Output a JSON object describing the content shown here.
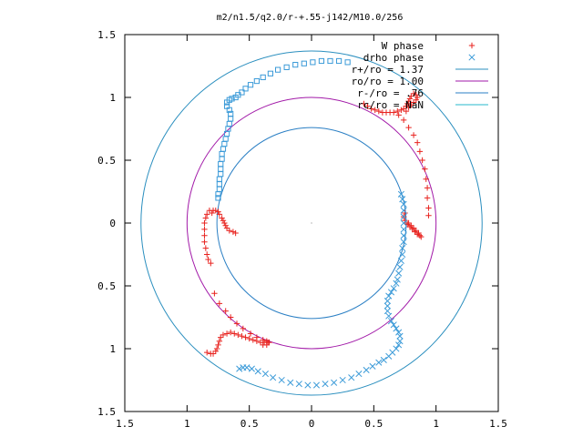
{
  "chart_data": {
    "type": "scatter",
    "title": "m2/n1.5/q2.0/r-+.55-j142/M10.0/256",
    "xlabel": "",
    "ylabel": "",
    "xlim": [
      -1.5,
      1.5
    ],
    "ylim": [
      -1.5,
      1.5
    ],
    "x_ticks": [
      -1.5,
      -1,
      -0.5,
      0,
      0.5,
      1,
      1.5
    ],
    "x_tick_labels": [
      "1.5",
      "1",
      "0.5",
      "0",
      "0.5",
      "1",
      "1.5"
    ],
    "y_ticks": [
      1.5,
      1,
      0.5,
      0,
      -0.5,
      -1,
      -1.5
    ],
    "y_tick_labels": [
      "1.5",
      "1",
      "0.5",
      "0",
      "0.5",
      "1",
      "1.5"
    ],
    "grid": false,
    "legend_position": "top-right",
    "legend": [
      {
        "label": "W phase",
        "marker": "plus",
        "color": "#e8221e"
      },
      {
        "label": "drho phase",
        "marker": "cross",
        "color": "#3a9ad8"
      },
      {
        "label": "r+/ro = 1.37",
        "marker": "line",
        "color": "#2b8fbf"
      },
      {
        "label": "ro/ro = 1.00",
        "marker": "line",
        "color": "#a21aa8"
      },
      {
        "label": "r-/ro = .76",
        "marker": "line",
        "color": "#2a7fc4"
      },
      {
        "label": "rc/ro = NaN",
        "marker": "line",
        "color": "#27b8cc"
      }
    ],
    "circles": [
      {
        "name": "r+/ro = 1.37",
        "r": 1.37,
        "color": "#2b8fbf"
      },
      {
        "name": "ro/ro = 1.00",
        "r": 1.0,
        "color": "#a21aa8"
      },
      {
        "name": "r-/ro = .76",
        "r": 0.76,
        "color": "#2a7fc4"
      }
    ],
    "series": [
      {
        "name": "W phase",
        "color": "#e8221e",
        "marker": "plus",
        "points": [
          [
            0.42,
            0.95
          ],
          [
            0.45,
            0.93
          ],
          [
            0.48,
            0.91
          ],
          [
            0.51,
            0.9
          ],
          [
            0.54,
            0.89
          ],
          [
            0.57,
            0.88
          ],
          [
            0.6,
            0.88
          ],
          [
            0.63,
            0.88
          ],
          [
            0.66,
            0.88
          ],
          [
            0.69,
            0.89
          ],
          [
            0.72,
            0.9
          ],
          [
            0.74,
            0.91
          ],
          [
            0.76,
            0.93
          ],
          [
            0.77,
            0.95
          ],
          [
            0.78,
            0.97
          ],
          [
            0.79,
            0.99
          ],
          [
            0.8,
            1.01
          ],
          [
            0.82,
            1.03
          ],
          [
            0.84,
            1.02
          ],
          [
            0.85,
            1.0
          ],
          [
            0.84,
            0.98
          ],
          [
            0.82,
            0.96
          ],
          [
            0.8,
            0.94
          ],
          [
            0.78,
            0.92
          ],
          [
            0.76,
            0.89
          ],
          [
            0.7,
            0.86
          ],
          [
            0.74,
            0.82
          ],
          [
            0.78,
            0.76
          ],
          [
            0.82,
            0.7
          ],
          [
            0.85,
            0.64
          ],
          [
            0.87,
            0.57
          ],
          [
            0.89,
            0.5
          ],
          [
            0.91,
            0.43
          ],
          [
            0.92,
            0.35
          ],
          [
            0.93,
            0.28
          ],
          [
            0.93,
            0.2
          ],
          [
            0.94,
            0.12
          ],
          [
            0.94,
            0.06
          ],
          [
            0.88,
            -0.11
          ],
          [
            0.85,
            -0.09
          ],
          [
            0.83,
            -0.07
          ],
          [
            0.81,
            -0.05
          ],
          [
            0.79,
            -0.03
          ],
          [
            0.77,
            -0.01
          ],
          [
            0.75,
            0.02
          ],
          [
            0.74,
            0.05
          ],
          [
            0.75,
            0.08
          ],
          [
            0.78,
            0.0
          ],
          [
            0.8,
            -0.02
          ],
          [
            0.82,
            -0.04
          ],
          [
            0.84,
            -0.06
          ],
          [
            0.86,
            -0.08
          ],
          [
            0.87,
            -0.1
          ],
          [
            -0.82,
            0.1
          ],
          [
            -0.84,
            0.07
          ],
          [
            -0.85,
            0.04
          ],
          [
            -0.86,
            0.0
          ],
          [
            -0.86,
            -0.05
          ],
          [
            -0.86,
            -0.1
          ],
          [
            -0.86,
            -0.15
          ],
          [
            -0.85,
            -0.2
          ],
          [
            -0.84,
            -0.25
          ],
          [
            -0.83,
            -0.29
          ],
          [
            -0.81,
            -0.32
          ],
          [
            -0.8,
            0.08
          ],
          [
            -0.79,
            0.1
          ],
          [
            -0.77,
            0.1
          ],
          [
            -0.75,
            0.09
          ],
          [
            -0.74,
            0.07
          ],
          [
            -0.72,
            0.04
          ],
          [
            -0.71,
            0.02
          ],
          [
            -0.7,
            0.0
          ],
          [
            -0.69,
            -0.02
          ],
          [
            -0.68,
            -0.04
          ],
          [
            -0.66,
            -0.06
          ],
          [
            -0.63,
            -0.07
          ],
          [
            -0.61,
            -0.08
          ],
          [
            -0.78,
            -0.56
          ],
          [
            -0.74,
            -0.64
          ],
          [
            -0.69,
            -0.7
          ],
          [
            -0.65,
            -0.75
          ],
          [
            -0.6,
            -0.8
          ],
          [
            -0.55,
            -0.84
          ],
          [
            -0.49,
            -0.88
          ],
          [
            -0.44,
            -0.91
          ],
          [
            -0.39,
            -0.93
          ],
          [
            -0.35,
            -0.95
          ],
          [
            -0.84,
            -1.03
          ],
          [
            -0.81,
            -1.04
          ],
          [
            -0.79,
            -1.04
          ],
          [
            -0.77,
            -1.02
          ],
          [
            -0.76,
            -1.0
          ],
          [
            -0.75,
            -0.97
          ],
          [
            -0.74,
            -0.94
          ],
          [
            -0.73,
            -0.91
          ],
          [
            -0.71,
            -0.89
          ],
          [
            -0.68,
            -0.88
          ],
          [
            -0.65,
            -0.87
          ],
          [
            -0.62,
            -0.88
          ],
          [
            -0.59,
            -0.89
          ],
          [
            -0.56,
            -0.9
          ],
          [
            -0.53,
            -0.91
          ],
          [
            -0.5,
            -0.92
          ],
          [
            -0.47,
            -0.93
          ],
          [
            -0.44,
            -0.94
          ],
          [
            -0.41,
            -0.95
          ],
          [
            -0.38,
            -0.95
          ],
          [
            -0.36,
            -0.94
          ],
          [
            -0.34,
            -0.95
          ],
          [
            -0.36,
            -0.97
          ],
          [
            -0.39,
            -0.97
          ]
        ]
      },
      {
        "name": "drho phase",
        "color": "#3a9ad8",
        "marker": "cross",
        "points": [
          [
            0.72,
            0.23
          ],
          [
            0.73,
            0.19
          ],
          [
            0.74,
            0.15
          ],
          [
            0.74,
            0.1
          ],
          [
            0.74,
            0.05
          ],
          [
            0.74,
            0.0
          ],
          [
            0.74,
            -0.05
          ],
          [
            0.74,
            -0.1
          ],
          [
            0.74,
            -0.15
          ],
          [
            0.73,
            -0.2
          ],
          [
            0.73,
            -0.25
          ],
          [
            0.72,
            -0.3
          ],
          [
            0.71,
            -0.35
          ],
          [
            0.7,
            -0.4
          ],
          [
            0.69,
            -0.45
          ],
          [
            0.68,
            -0.48
          ],
          [
            0.66,
            -0.52
          ],
          [
            0.64,
            -0.55
          ],
          [
            0.62,
            -0.58
          ],
          [
            0.61,
            -0.62
          ],
          [
            0.61,
            -0.66
          ],
          [
            0.61,
            -0.7
          ],
          [
            0.62,
            -0.74
          ],
          [
            0.64,
            -0.78
          ],
          [
            0.66,
            -0.81
          ],
          [
            0.68,
            -0.84
          ],
          [
            0.7,
            -0.87
          ],
          [
            0.71,
            -0.9
          ],
          [
            0.71,
            -0.94
          ],
          [
            0.7,
            -0.97
          ],
          [
            0.68,
            -1.0
          ],
          [
            0.65,
            -1.03
          ],
          [
            0.62,
            -1.06
          ],
          [
            0.58,
            -1.09
          ],
          [
            0.54,
            -1.11
          ],
          [
            0.49,
            -1.14
          ],
          [
            0.44,
            -1.17
          ],
          [
            0.38,
            -1.2
          ],
          [
            0.32,
            -1.23
          ],
          [
            0.25,
            -1.25
          ],
          [
            0.18,
            -1.27
          ],
          [
            0.11,
            -1.28
          ],
          [
            0.04,
            -1.29
          ],
          [
            -0.03,
            -1.29
          ],
          [
            -0.1,
            -1.28
          ],
          [
            -0.17,
            -1.27
          ],
          [
            -0.24,
            -1.25
          ],
          [
            -0.31,
            -1.23
          ],
          [
            -0.37,
            -1.2
          ],
          [
            -0.43,
            -1.18
          ],
          [
            -0.48,
            -1.16
          ],
          [
            -0.52,
            -1.15
          ],
          [
            -0.55,
            -1.15
          ],
          [
            -0.58,
            -1.16
          ]
        ]
      },
      {
        "name": "",
        "color": "#3a9ad8",
        "marker": "square",
        "points": [
          [
            0.29,
            1.28
          ],
          [
            0.22,
            1.29
          ],
          [
            0.15,
            1.29
          ],
          [
            0.08,
            1.29
          ],
          [
            0.01,
            1.28
          ],
          [
            -0.06,
            1.27
          ],
          [
            -0.13,
            1.26
          ],
          [
            -0.2,
            1.24
          ],
          [
            -0.27,
            1.22
          ],
          [
            -0.33,
            1.19
          ],
          [
            -0.39,
            1.16
          ],
          [
            -0.44,
            1.13
          ],
          [
            -0.49,
            1.1
          ],
          [
            -0.53,
            1.07
          ],
          [
            -0.56,
            1.04
          ],
          [
            -0.59,
            1.02
          ],
          [
            -0.61,
            1.0
          ],
          [
            -0.64,
            0.99
          ],
          [
            -0.66,
            0.98
          ],
          [
            -0.68,
            0.96
          ],
          [
            -0.68,
            0.93
          ],
          [
            -0.66,
            0.9
          ],
          [
            -0.65,
            0.87
          ],
          [
            -0.65,
            0.83
          ],
          [
            -0.66,
            0.79
          ],
          [
            -0.67,
            0.75
          ],
          [
            -0.68,
            0.71
          ],
          [
            -0.69,
            0.67
          ],
          [
            -0.7,
            0.63
          ],
          [
            -0.71,
            0.59
          ],
          [
            -0.72,
            0.55
          ],
          [
            -0.72,
            0.51
          ],
          [
            -0.73,
            0.47
          ],
          [
            -0.73,
            0.43
          ],
          [
            -0.73,
            0.39
          ],
          [
            -0.74,
            0.35
          ],
          [
            -0.74,
            0.31
          ],
          [
            -0.74,
            0.27
          ],
          [
            -0.75,
            0.23
          ],
          [
            -0.75,
            0.2
          ]
        ]
      }
    ]
  }
}
